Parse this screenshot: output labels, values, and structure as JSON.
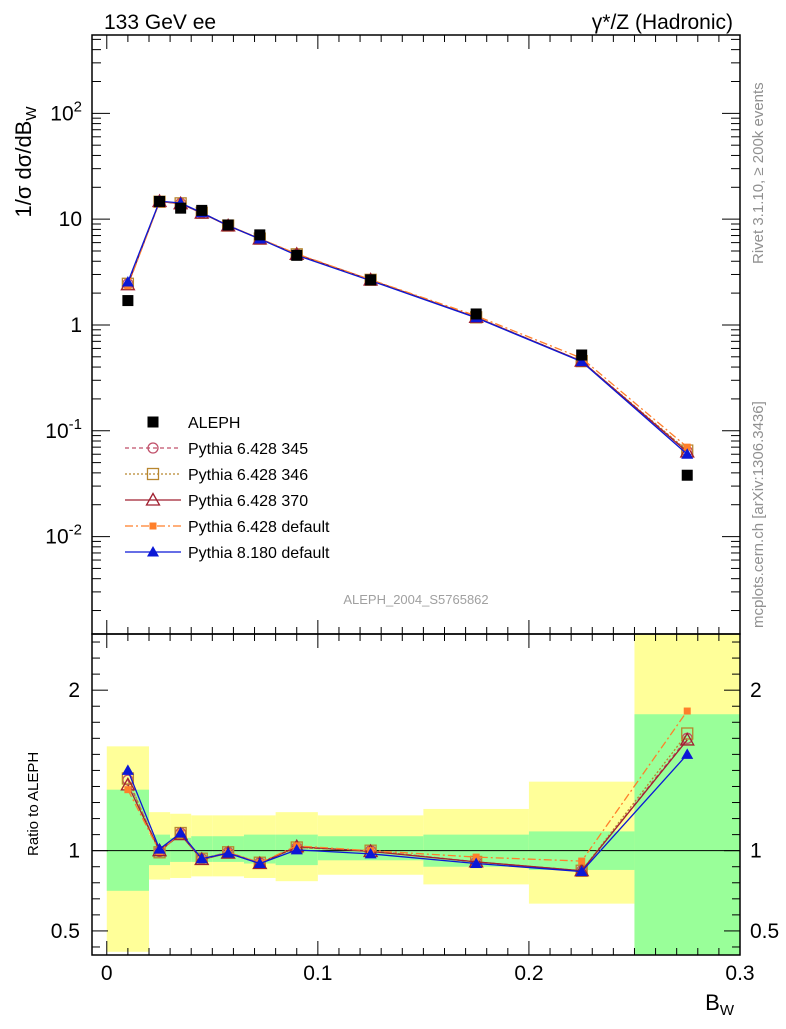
{
  "chart_data": {
    "type": "scatter",
    "title_left": "133 GeV ee",
    "title_right": "γ*/Z (Hadronic)",
    "analysis_label": "ALEPH_2004_S5765862",
    "side_label_top": "Rivet 3.1.10, ≥ 200k events",
    "side_label_bottom": "mcplots.cern.ch [arXiv:1306.3436]",
    "xlabel": "B_W",
    "ylabel": "1/σ dσ/dB_W",
    "ratio_ylabel": "Ratio to ALEPH",
    "xlim": [
      -0.007,
      0.3
    ],
    "ylim": [
      0.0012,
      550
    ],
    "ratio_ylim": [
      0.35,
      2.35
    ],
    "x_ticks": [
      {
        "v": 0,
        "label": "0"
      },
      {
        "v": 0.1,
        "label": "0.1"
      },
      {
        "v": 0.2,
        "label": "0.2"
      },
      {
        "v": 0.3,
        "label": "0.3"
      }
    ],
    "y_ticks": [
      {
        "v": 0.01,
        "label": "10^-2"
      },
      {
        "v": 0.1,
        "label": "10^-1"
      },
      {
        "v": 1,
        "label": "1"
      },
      {
        "v": 10,
        "label": "10"
      },
      {
        "v": 100,
        "label": "10^2"
      }
    ],
    "ratio_ticks": [
      {
        "v": 0.5,
        "label": "0.5"
      },
      {
        "v": 1,
        "label": "1"
      },
      {
        "v": 2,
        "label": "2"
      }
    ],
    "bin_edges": [
      0.0,
      0.02,
      0.03,
      0.04,
      0.05,
      0.065,
      0.08,
      0.1,
      0.15,
      0.2,
      0.25,
      0.3
    ],
    "x": [
      0.01,
      0.025,
      0.035,
      0.045,
      0.0575,
      0.0725,
      0.09,
      0.125,
      0.175,
      0.225,
      0.275
    ],
    "data_series": {
      "name": "ALEPH",
      "values": [
        1.7,
        14.7,
        12.7,
        12.1,
        8.8,
        7.1,
        4.55,
        2.67,
        1.27,
        0.52,
        0.038
      ]
    },
    "series": [
      {
        "name": "Pythia 6.428 345",
        "color": "#c0506a",
        "marker": "circle-open",
        "dash": "4,3",
        "values": [
          2.45,
          14.6,
          14.1,
          11.5,
          8.7,
          6.55,
          4.65,
          2.67,
          1.18,
          0.455,
          0.064
        ],
        "ratio": [
          1.44,
          0.995,
          1.11,
          0.95,
          0.99,
          0.925,
          1.02,
          1.0,
          0.93,
          0.875,
          1.7
        ]
      },
      {
        "name": "Pythia 6.428 346",
        "color": "#b8862e",
        "marker": "square-open",
        "dash": "2,2",
        "values": [
          2.45,
          14.6,
          14.1,
          11.5,
          8.7,
          6.55,
          4.65,
          2.67,
          1.18,
          0.455,
          0.065
        ],
        "ratio": [
          1.45,
          0.99,
          1.11,
          0.95,
          0.99,
          0.925,
          1.02,
          1.0,
          0.93,
          0.875,
          1.73
        ]
      },
      {
        "name": "Pythia 6.428 370",
        "color": "#a02030",
        "marker": "triangle-open",
        "dash": "",
        "values": [
          2.4,
          14.7,
          14.0,
          11.4,
          8.65,
          6.5,
          4.65,
          2.66,
          1.18,
          0.455,
          0.063
        ],
        "ratio": [
          1.41,
          1.0,
          1.1,
          0.945,
          0.985,
          0.92,
          1.025,
          0.995,
          0.93,
          0.875,
          1.69
        ]
      },
      {
        "name": "Pythia 6.428 default",
        "color": "#ff7f2a",
        "marker": "square-filled",
        "dash": "8,3,2,3",
        "values": [
          2.35,
          14.6,
          14.2,
          11.4,
          8.75,
          6.55,
          4.7,
          2.68,
          1.22,
          0.485,
          0.07
        ],
        "ratio": [
          1.38,
          0.995,
          1.11,
          0.945,
          0.99,
          0.925,
          1.03,
          1.0,
          0.96,
          0.935,
          1.87
        ]
      },
      {
        "name": "Pythia 8.180 default",
        "color": "#0b18d6",
        "marker": "triangle-filled",
        "dash": "",
        "values": [
          2.55,
          14.8,
          14.2,
          11.5,
          8.7,
          6.5,
          4.55,
          2.62,
          1.17,
          0.45,
          0.06
        ],
        "ratio": [
          1.5,
          1.01,
          1.11,
          0.95,
          0.985,
          0.92,
          1.005,
          0.98,
          0.92,
          0.87,
          1.6
        ]
      }
    ],
    "ratio_bands": {
      "green_lo": [
        0.75,
        0.91,
        0.93,
        0.93,
        0.93,
        0.92,
        0.91,
        0.94,
        0.9,
        0.88,
        0.35
      ],
      "green_hi": [
        1.38,
        1.1,
        1.08,
        1.09,
        1.09,
        1.1,
        1.1,
        1.09,
        1.1,
        1.12,
        1.85
      ],
      "yellow_lo": [
        0.37,
        0.82,
        0.83,
        0.84,
        0.84,
        0.83,
        0.81,
        0.85,
        0.79,
        0.67,
        0.35
      ],
      "yellow_hi": [
        1.65,
        1.24,
        1.23,
        1.22,
        1.22,
        1.22,
        1.24,
        1.22,
        1.26,
        1.43,
        2.35
      ]
    }
  }
}
